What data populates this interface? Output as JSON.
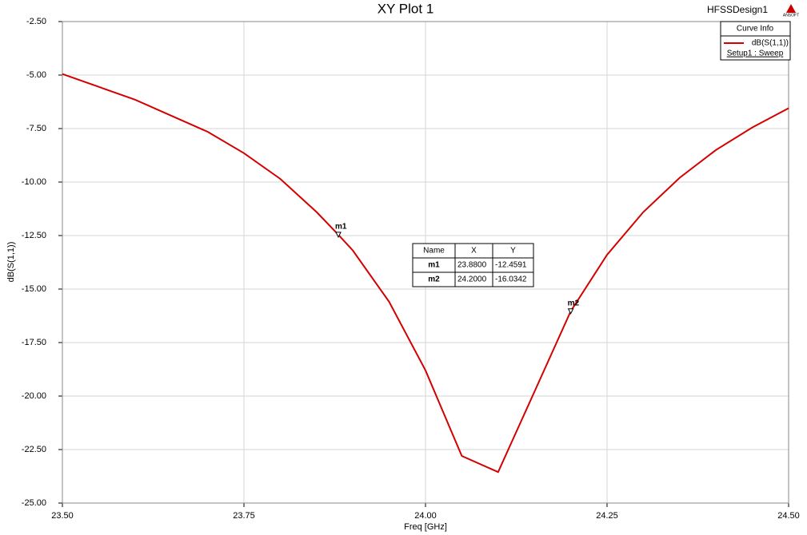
{
  "chart_data": {
    "type": "line",
    "title": "XY Plot 1",
    "design_name": "HFSSDesign1",
    "logo": "ANSOFT",
    "xlabel": "Freq [GHz]",
    "ylabel": "dB(S(1,1))",
    "xlim": [
      23.5,
      24.5
    ],
    "xticks": [
      {
        "value": 23.5,
        "label": "23.50"
      },
      {
        "value": 23.75,
        "label": "23.75"
      },
      {
        "value": 24.0,
        "label": "24.00"
      },
      {
        "value": 24.25,
        "label": "24.25"
      },
      {
        "value": 24.5,
        "label": "24.50"
      }
    ],
    "ylim": [
      -25,
      -2.5
    ],
    "yticks": [
      {
        "value": -25,
        "label": "-25.00"
      },
      {
        "value": -22.5,
        "label": "-22.50"
      },
      {
        "value": -20,
        "label": "-20.00"
      },
      {
        "value": -17.5,
        "label": "-17.50"
      },
      {
        "value": -15,
        "label": "-15.00"
      },
      {
        "value": -12.5,
        "label": "-12.50"
      },
      {
        "value": -10,
        "label": "-10.00"
      },
      {
        "value": -7.5,
        "label": "-7.50"
      },
      {
        "value": -5,
        "label": "-5.00"
      },
      {
        "value": -2.5,
        "label": "-2.50"
      }
    ],
    "grid": true,
    "x": [
      23.5,
      23.6,
      23.7,
      23.75,
      23.8,
      23.85,
      23.88,
      23.9,
      23.95,
      24.0,
      24.05,
      24.1,
      24.15,
      24.2,
      24.25,
      24.3,
      24.35,
      24.4,
      24.45,
      24.5
    ],
    "series": [
      {
        "name": "dB(S(1,1))",
        "color": "#d40000",
        "values": [
          -4.95,
          -6.15,
          -7.65,
          -8.65,
          -9.85,
          -11.4,
          -12.4591,
          -13.2,
          -15.6,
          -18.8,
          -22.8,
          -23.55,
          -19.8,
          -16.0342,
          -13.4,
          -11.4,
          -9.8,
          -8.5,
          -7.45,
          -6.55
        ]
      }
    ],
    "legend_title": "Curve Info",
    "legend_sweep": "Setup1 : Sweep",
    "markers": [
      {
        "name": "m1",
        "x": 23.88,
        "y": -12.4591
      },
      {
        "name": "m2",
        "x": 24.2,
        "y": -16.0342
      }
    ],
    "marker_table": {
      "header": [
        "Name",
        "X",
        "Y"
      ],
      "rows": [
        [
          "m1",
          "23.8800",
          "-12.4591"
        ],
        [
          "m2",
          "24.2000",
          "-16.0342"
        ]
      ]
    }
  }
}
